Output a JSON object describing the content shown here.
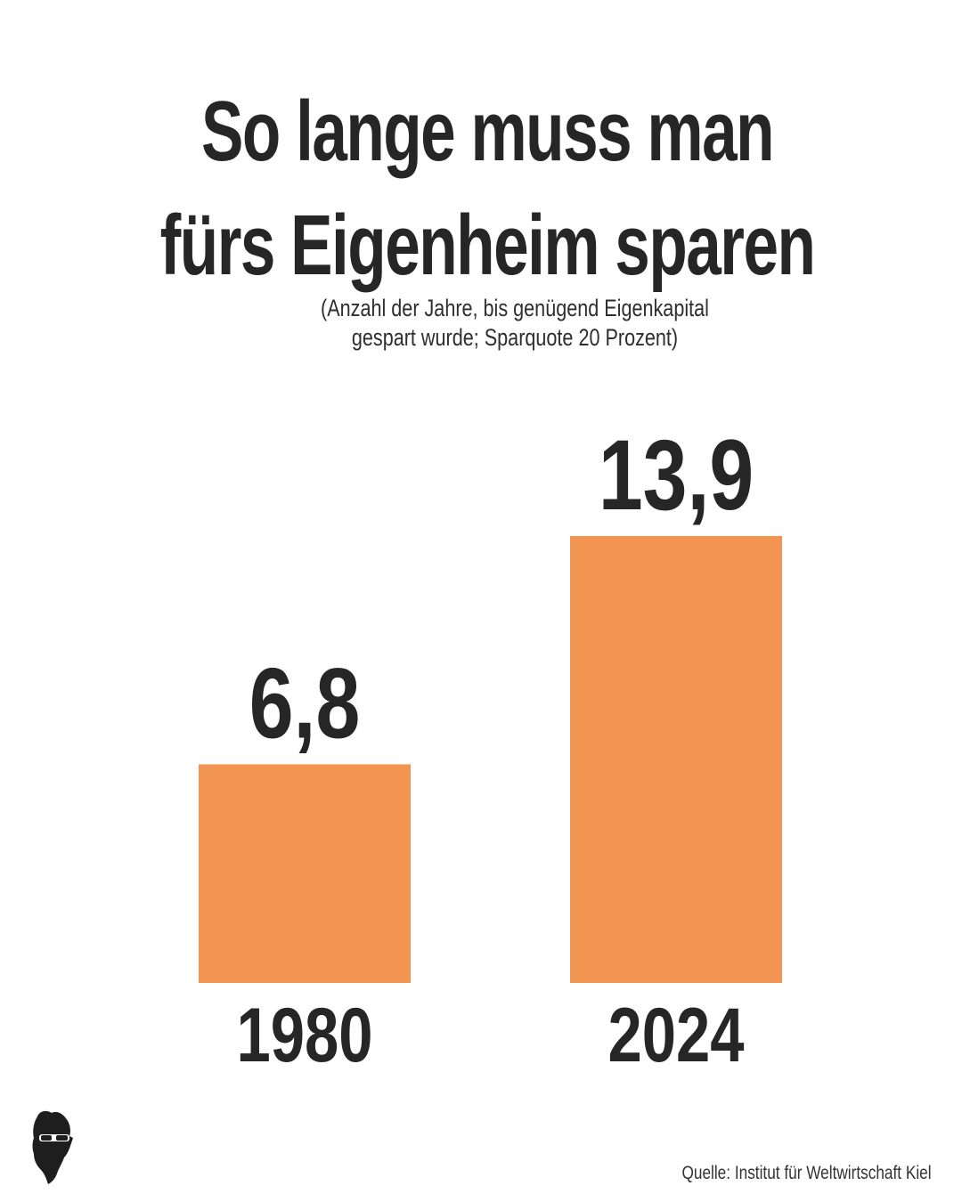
{
  "header": {
    "title_line1": "So lange muss man",
    "title_line2": "fürs Eigenheim sparen",
    "subtitle_line1": "(Anzahl der Jahre, bis genügend Eigenkapital",
    "subtitle_line2": "gespart wurde; Sparquote 20 Prozent)"
  },
  "footer": {
    "source": "Quelle: Institut für Weltwirtschaft Kiel",
    "logo_icon": "person-with-sunglasses-icon"
  },
  "colors": {
    "bar": "#F29552",
    "text": "#262626"
  },
  "chart_data": {
    "type": "bar",
    "categories": [
      "1980",
      "2024"
    ],
    "values": [
      6.8,
      13.9
    ],
    "value_labels": [
      "6,8",
      "13,9"
    ],
    "title": "So lange muss man fürs Eigenheim sparen",
    "subtitle": "(Anzahl der Jahre, bis genügend Eigenkapital gespart wurde; Sparquote 20 Prozent)",
    "xlabel": "",
    "ylabel": "",
    "ylim": [
      0,
      13.9
    ],
    "grid": false,
    "legend": "none"
  }
}
